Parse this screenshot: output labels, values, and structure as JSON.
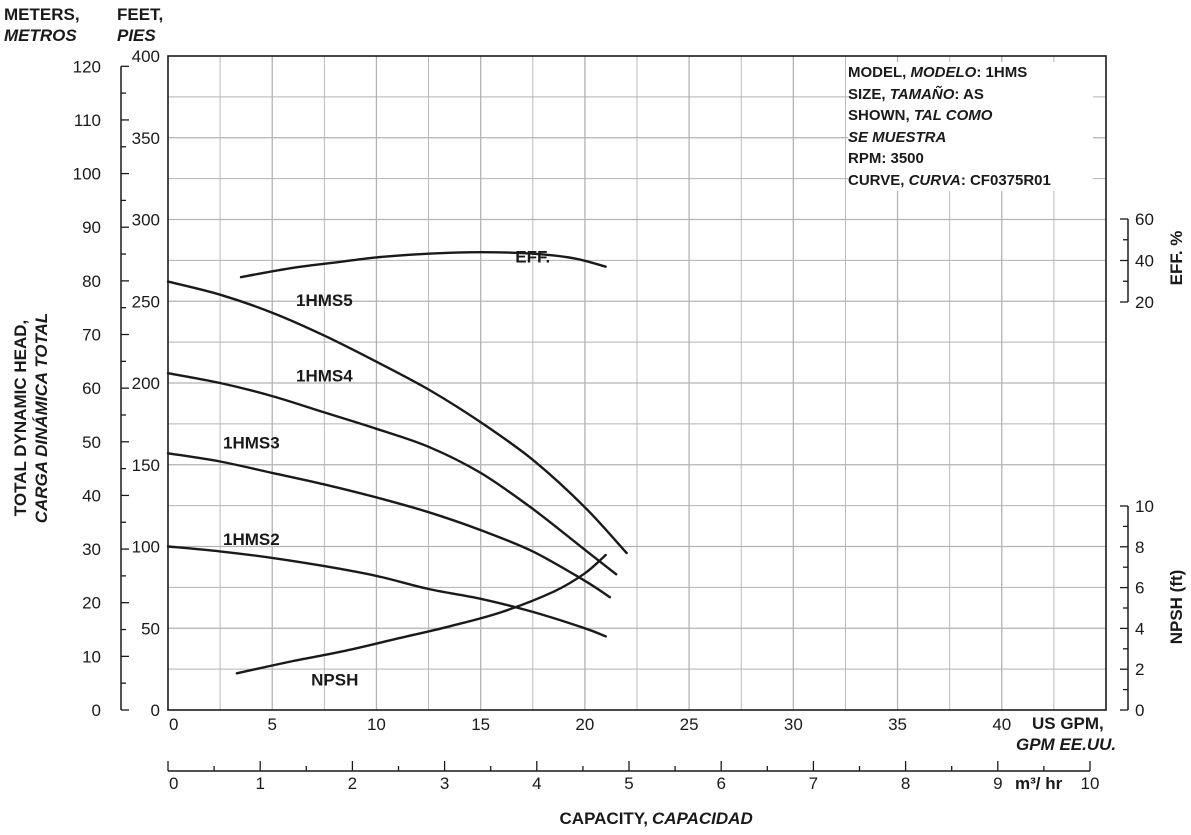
{
  "unit_labels": {
    "meters": "METERS,",
    "meters_es": "METROS",
    "feet": "FEET,",
    "feet_es": "PIES"
  },
  "left_axis_title": {
    "line1": "TOTAL DYNAMIC HEAD,",
    "line2": "CARGA DINÁMICA TOTAL"
  },
  "right_axis_titles": {
    "eff": "EFF. %",
    "npsh": "NPSH (ft)"
  },
  "x_axis_units": {
    "gpm": "US GPM,",
    "gpm_es": "GPM EE.UU.",
    "m3hr": "m³/ hr"
  },
  "x_axis_title": {
    "main": "CAPACITY,",
    "es": "CAPACIDAD"
  },
  "info_box": {
    "model_label": "MODEL,",
    "model_label_es": "MODELO",
    "model_value": ": 1HMS",
    "size_label": "SIZE,",
    "size_label_es": "TAMAÑO",
    "size_value": ": AS",
    "shown": "SHOWN,",
    "shown_es": "TAL COMO",
    "shown_es2": "SE MUESTRA",
    "rpm": "RPM: 3500",
    "curve_label": "CURVE,",
    "curve_label_es": "CURVA",
    "curve_value": ": CF0375R01"
  },
  "colors": {
    "curve": "#1a1a1a",
    "grid": "#b3b3b3",
    "axis": "#1a1a1a"
  },
  "chart_data": {
    "type": "line",
    "x_gpm_ticks": [
      0,
      5,
      10,
      15,
      20,
      25,
      30,
      35,
      40
    ],
    "x_gpm_range": [
      0,
      45
    ],
    "x_m3hr_ticks": [
      0,
      1,
      2,
      3,
      4,
      5,
      6,
      7,
      8,
      9,
      10
    ],
    "y_feet_ticks": [
      0,
      50,
      100,
      150,
      200,
      250,
      300,
      350,
      400
    ],
    "y_feet_range": [
      0,
      400
    ],
    "y_meters_ticks": [
      0,
      10,
      20,
      30,
      40,
      50,
      60,
      70,
      80,
      90,
      100,
      110,
      120
    ],
    "eff_ticks": [
      20,
      40,
      60
    ],
    "npsh_ticks": [
      0,
      2,
      4,
      6,
      8,
      10
    ],
    "npsh_range": [
      0,
      10
    ],
    "grid": true,
    "series": [
      {
        "name": "1HMS5",
        "axis": "head_ft",
        "label_at": [
          7.5,
          247
        ],
        "points": [
          [
            0,
            262
          ],
          [
            2.5,
            254
          ],
          [
            5,
            243
          ],
          [
            7.5,
            229
          ],
          [
            10,
            213
          ],
          [
            12.5,
            196
          ],
          [
            15,
            176
          ],
          [
            17.5,
            153
          ],
          [
            20,
            124
          ],
          [
            22,
            96
          ]
        ]
      },
      {
        "name": "1HMS4",
        "axis": "head_ft",
        "label_at": [
          7.5,
          201
        ],
        "points": [
          [
            0,
            206
          ],
          [
            2.5,
            200
          ],
          [
            5,
            192
          ],
          [
            7.5,
            182
          ],
          [
            10,
            172
          ],
          [
            12.5,
            161
          ],
          [
            15,
            145
          ],
          [
            17.5,
            123
          ],
          [
            20,
            98
          ],
          [
            21.5,
            83
          ]
        ]
      },
      {
        "name": "1HMS3",
        "axis": "head_ft",
        "label_at": [
          4,
          160
        ],
        "points": [
          [
            0,
            157
          ],
          [
            2.5,
            152
          ],
          [
            5,
            145
          ],
          [
            7.5,
            138
          ],
          [
            10,
            130
          ],
          [
            12.5,
            121
          ],
          [
            15,
            110
          ],
          [
            17.5,
            97
          ],
          [
            20,
            79
          ],
          [
            21.2,
            69
          ]
        ]
      },
      {
        "name": "1HMS2",
        "axis": "head_ft",
        "label_at": [
          4,
          101
        ],
        "points": [
          [
            0,
            100
          ],
          [
            2.5,
            97
          ],
          [
            5,
            93
          ],
          [
            7.5,
            88
          ],
          [
            10,
            82
          ],
          [
            12.5,
            74
          ],
          [
            15,
            68
          ],
          [
            17.5,
            60
          ],
          [
            20,
            50
          ],
          [
            21,
            45
          ]
        ]
      },
      {
        "name": "EFF.",
        "axis": "eff_pct",
        "label_at": [
          17.5,
          39
        ],
        "points": [
          [
            3.5,
            32
          ],
          [
            6,
            36.5
          ],
          [
            8,
            39
          ],
          [
            10,
            41.5
          ],
          [
            12.5,
            43.3
          ],
          [
            15,
            44
          ],
          [
            17.5,
            43.3
          ],
          [
            19.5,
            41
          ],
          [
            21,
            37
          ]
        ]
      },
      {
        "name": "NPSH",
        "axis": "npsh_ft",
        "label_at": [
          8,
          1.2
        ],
        "points": [
          [
            3.3,
            1.8
          ],
          [
            6,
            2.4
          ],
          [
            8.5,
            2.9
          ],
          [
            11,
            3.5
          ],
          [
            13.5,
            4.1
          ],
          [
            16,
            4.8
          ],
          [
            18.5,
            5.8
          ],
          [
            20,
            6.7
          ],
          [
            21,
            7.6
          ]
        ]
      }
    ]
  }
}
